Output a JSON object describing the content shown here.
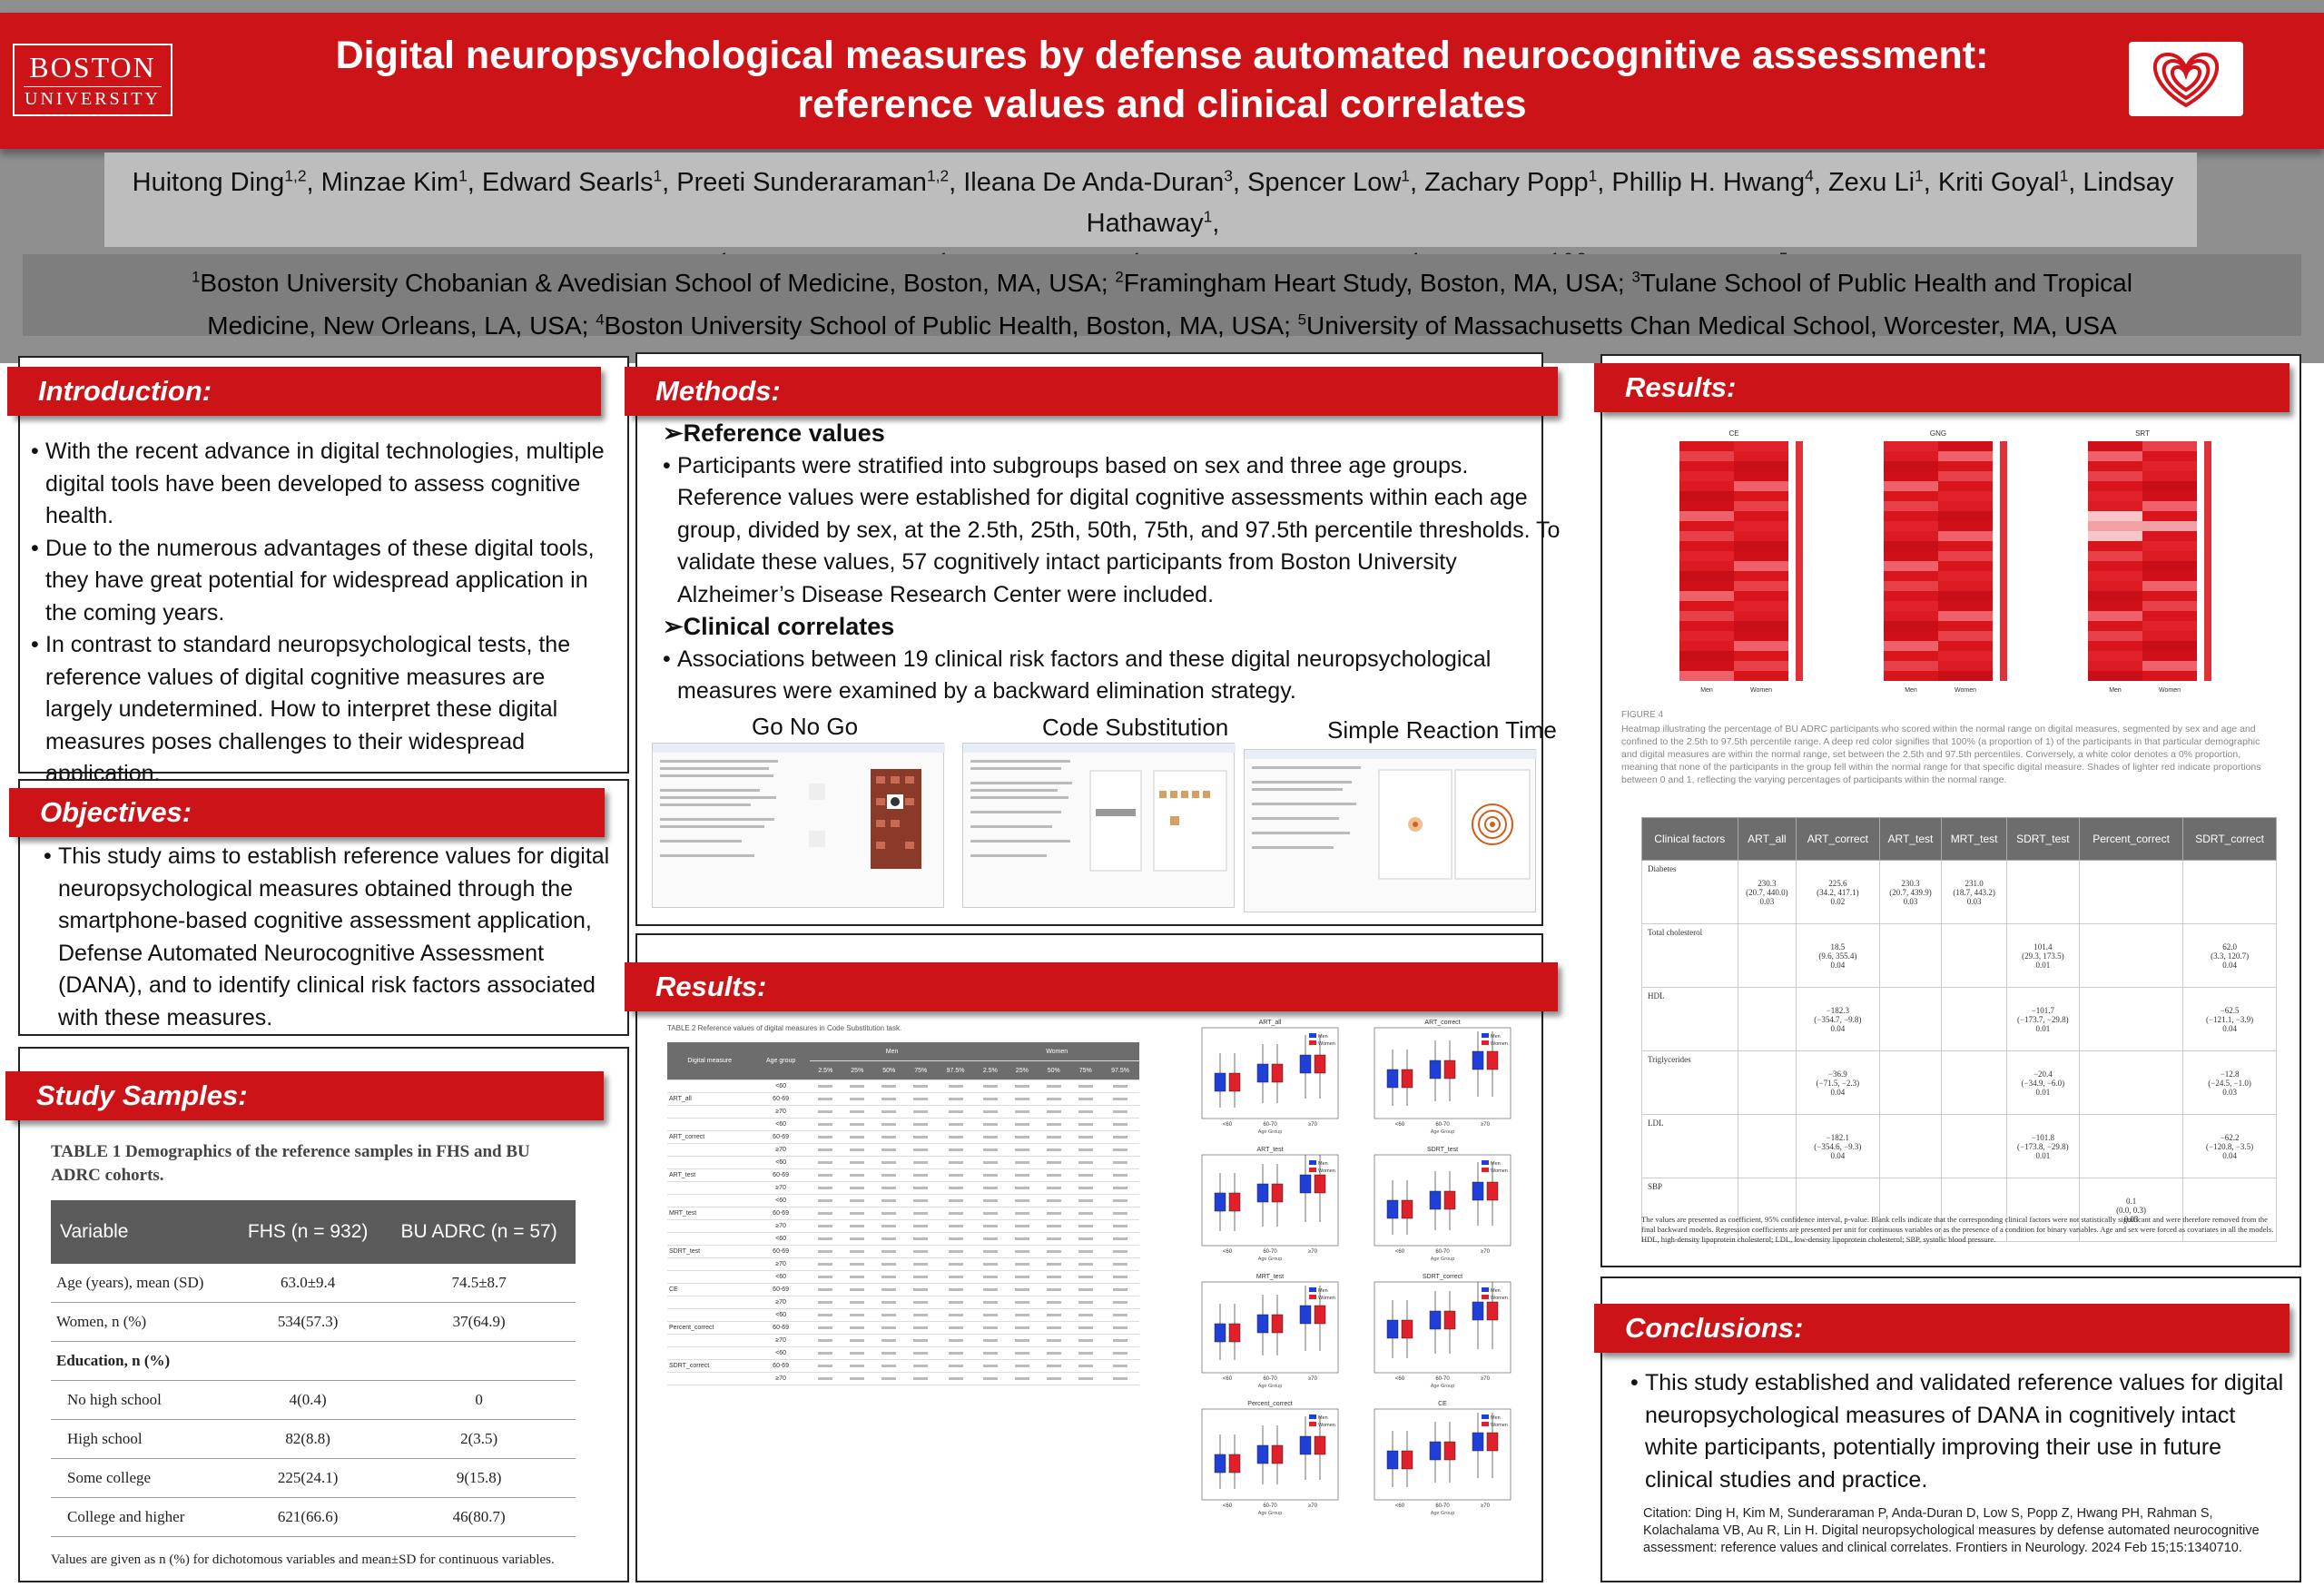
{
  "header": {
    "logo_line1": "BOSTON",
    "logo_line2": "UNIVERSITY",
    "title_line1": "Digital neuropsychological measures by defense automated neurocognitive assessment:",
    "title_line2": "reference values and clinical correlates"
  },
  "authors": {
    "line1": [
      {
        "name": "Huitong Ding",
        "sup": "1,2"
      },
      {
        "name": ", Minzae Kim",
        "sup": "1"
      },
      {
        "name": ", Edward Searls",
        "sup": "1"
      },
      {
        "name": ", Preeti Sunderaraman",
        "sup": "1,2"
      },
      {
        "name": ", Ileana De Anda-Duran",
        "sup": "3"
      },
      {
        "name": ", Spencer Low",
        "sup": "1"
      },
      {
        "name": ", Zachary Popp",
        "sup": "1"
      },
      {
        "name": ", Phillip H. Hwang",
        "sup": "4"
      },
      {
        "name": ", Zexu Li",
        "sup": "1"
      },
      {
        "name": ", Kriti Goyal",
        "sup": "1"
      },
      {
        "name": ", Lindsay Hathaway",
        "sup": "1"
      },
      {
        "name": ",",
        "sup": ""
      }
    ],
    "line2": [
      {
        "name": "Jose Monteverde",
        "sup": "1"
      },
      {
        "name": ", Salman Rahman",
        "sup": "1"
      },
      {
        "name": ", Akwaugo Igwe",
        "sup": "1"
      },
      {
        "name": ", Vijaya B Kolachalama",
        "sup": "1"
      },
      {
        "name": ", Rhoda Au",
        "sup": "1,2,3"
      },
      {
        "name": ", Honghuang Lin",
        "sup": "5"
      }
    ]
  },
  "affiliations": {
    "line1": [
      {
        "sup": "1",
        "text": "Boston University Chobanian & Avedisian School of Medicine, Boston, MA, USA; "
      },
      {
        "sup": "2",
        "text": "Framingham Heart Study, Boston, MA, USA; "
      },
      {
        "sup": "3",
        "text": "Tulane School of Public Health and Tropical"
      }
    ],
    "line2": [
      {
        "sup": "",
        "text": "Medicine, New Orleans, LA, USA; "
      },
      {
        "sup": "4",
        "text": "Boston University School of Public Health, Boston, MA, USA; "
      },
      {
        "sup": "5",
        "text": "University of Massachusetts Chan Medical School, Worcester, MA, USA"
      }
    ]
  },
  "introduction": {
    "heading": "Introduction:",
    "bullets": [
      "With the recent advance in digital technologies, multiple digital tools have been developed to assess cognitive health.",
      "Due to the numerous advantages of these digital tools, they have great potential for widespread application in the coming years.",
      "In contrast to standard neuropsychological tests, the reference values of digital cognitive measures are largely undetermined. How to interpret these digital measures poses challenges to their widespread application."
    ]
  },
  "objectives": {
    "heading": "Objectives:",
    "bullets": [
      "This study aims to establish reference values for digital neuropsychological measures obtained through the smartphone-based cognitive assessment application, Defense Automated Neurocognitive Assessment (DANA), and to identify clinical risk factors associated with these measures."
    ]
  },
  "study_samples": {
    "heading": "Study Samples:",
    "table_caption": "TABLE 1  Demographics of the reference samples in FHS and BU ADRC cohorts.",
    "columns": [
      "Variable",
      "FHS (n = 932)",
      "BU ADRC (n = 57)"
    ],
    "rows": [
      [
        "Age (years), mean (SD)",
        "63.0±9.4",
        "74.5±8.7"
      ],
      [
        "Women, n (%)",
        "534(57.3)",
        "37(64.9)"
      ],
      [
        "Education, n (%)",
        "",
        ""
      ],
      [
        "No high school",
        "4(0.4)",
        "0"
      ],
      [
        "High school",
        "82(8.8)",
        "2(3.5)"
      ],
      [
        "Some college",
        "225(24.1)",
        "9(15.8)"
      ],
      [
        "College and higher",
        "621(66.6)",
        "46(80.7)"
      ]
    ],
    "footnote": "Values are given as n (%) for dichotomous variables and mean±SD for continuous variables."
  },
  "methods": {
    "heading": "Methods:",
    "ref_title": "Reference values",
    "ref_bullet": "Participants were stratified into subgroups based on sex and three age groups. Reference values were established for digital cognitive assessments within each age group, divided by sex, at the 2.5th, 25th, 50th, 75th, and 97.5th percentile thresholds. To validate these values, 57 cognitively intact participants from Boston University Alzheimer’s Disease Research Center were included.",
    "clin_title": "Clinical correlates",
    "clin_bullet": "Associations between 19 clinical risk factors and these digital neuropsychological measures were examined by a backward elimination strategy.",
    "tests": [
      "Go No Go",
      "Code Substitution",
      "Simple Reaction Time"
    ]
  },
  "results_mid": {
    "heading": "Results:",
    "table_caption": "TABLE 2  Reference values of digital measures in Code Substitution task.",
    "men_label": "Men",
    "women_label": "Women",
    "col_headers": [
      "Digital measure",
      "Age group",
      "2.5%",
      "25%",
      "50%",
      "75%",
      "97.5%",
      "2.5%",
      "25%",
      "50%",
      "75%",
      "97.5%"
    ],
    "measures": [
      "ART_all",
      "ART_correct",
      "ART_test",
      "MRT_test",
      "SDRT_test",
      "CE",
      "Percent_correct",
      "SDRT_correct"
    ],
    "age_groups": [
      "<60",
      "60-69",
      "≥70"
    ],
    "boxplot_titles": [
      "ART_all",
      "ART_correct",
      "ART_test",
      "SDRT_test",
      "MRT_test",
      "SDRT_correct",
      "Percent_correct",
      "CE"
    ],
    "legend": [
      "Men",
      "Women"
    ],
    "age_ticks": [
      "<60",
      "60-70",
      "≥70"
    ],
    "xlabel": "Age Group"
  },
  "results_right": {
    "heading": "Results:",
    "heatmap_titles": [
      "CE",
      "GNG",
      "SRT"
    ],
    "heatmap_x": [
      "Men",
      "Women"
    ],
    "figure_label": "FIGURE 4",
    "figure_caption": "Heatmap illustrating the percentage of BU ADRC participants who scored within the normal range on digital measures, segmented by sex and age and confined to the 2.5th to 97.5th percentile range. A deep red color signifies that 100% (a proportion of 1) of the participants in that particular demographic and digital measures are within the normal range, set between the 2.5th and 97.5th percentiles. Conversely, a white color denotes a 0% proportion, meaning that none of the participants in the group fell within the normal range for that specific digital measure. Shades of lighter red indicate proportions between 0 and 1, reflecting the varying percentages of participants within the normal range.",
    "corr_columns": [
      "Clinical factors",
      "ART_all",
      "ART_correct",
      "ART_test",
      "MRT_test",
      "SDRT_test",
      "Percent_correct",
      "SDRT_correct"
    ],
    "corr_rows": [
      [
        "Diabetes",
        "230.3\n(20.7, 440.0)\n0.03",
        "225.6\n(34.2, 417.1)\n0.02",
        "230.3\n(20.7, 439.9)\n0.03",
        "231.0\n(18.7, 443.2)\n0.03",
        "",
        "",
        ""
      ],
      [
        "Total cholesterol",
        "",
        "18.5\n(9.6, 355.4)\n0.04",
        "",
        "",
        "101.4\n(29.3, 173.5)\n0.01",
        "",
        "62.0\n(3.3, 120.7)\n0.04"
      ],
      [
        "HDL",
        "",
        "−182.3\n(−354.7, −9.8)\n0.04",
        "",
        "",
        "−101.7\n(−173.7, −29.8)\n0.01",
        "",
        "−62.5\n(−121.1, −3.9)\n0.04"
      ],
      [
        "Triglycerides",
        "",
        "−36.9\n(−71.5, −2.3)\n0.04",
        "",
        "",
        "−20.4\n(−34.9, −6.0)\n0.01",
        "",
        "−12.8\n(−24.5, −1.0)\n0.03"
      ],
      [
        "LDL",
        "",
        "−182.1\n(−354.6, −9.3)\n0.04",
        "",
        "",
        "−101.8\n(−173.8, −29.8)\n0.01",
        "",
        "−62.2\n(−120.8, −3.5)\n0.04"
      ],
      [
        "SBP",
        "",
        "",
        "",
        "",
        "",
        "0.1\n(0.0, 0.3)\n0.03",
        ""
      ]
    ],
    "corr_footnote": "The values are presented as coefficient, 95% confidence interval, p-value. Blank cells indicate that the corresponding clinical factors were not statistically significant and were therefore removed from the final backward models. Regression coefficients are presented per unit for continuous variables or as the presence of a condition for binary variables. Age and sex were forced as covariates in all the models. HDL, high-density lipoprotein cholesterol; LDL, low-density lipoprotein cholesterol; SBP, systolic blood pressure."
  },
  "conclusions": {
    "heading": "Conclusions:",
    "bullet": "This study established and validated reference values for digital neuropsychological measures of DANA in cognitively intact white participants, potentially improving their use in future clinical studies and practice.",
    "citation": "Citation: Ding H, Kim M, Sunderaraman P, Anda-Duran D, Low S, Popp Z, Hwang PH, Rahman S, Kolachalama VB, Au R, Lin H. Digital neuropsychological measures by defense automated neurocognitive assessment: reference values and clinical correlates. Frontiers in Neurology. 2024 Feb 15;15:1340710."
  },
  "colors": {
    "accent_red": "#cc1418",
    "header_gray": "#8f8f8f",
    "author_gray": "#bdbdbd",
    "affil_gray": "#7e7e7e",
    "table_header": "#5a5a5a",
    "men_blue": "#1f3fd6",
    "women_red": "#e0202a"
  }
}
